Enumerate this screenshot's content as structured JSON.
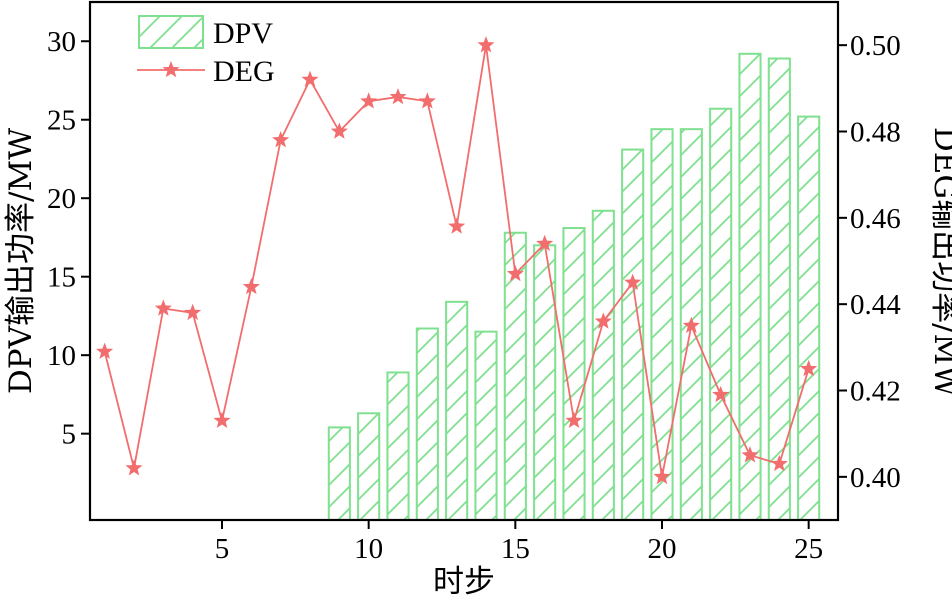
{
  "chart_data": {
    "type": "bar+line",
    "x_label": "时步",
    "y_left_label": "DPV输出功率/MW",
    "y_right_label": "DEG输出功率/MW",
    "x_range": [
      0.5,
      26
    ],
    "x_ticks": [
      5,
      10,
      15,
      20,
      25
    ],
    "y_left_range": [
      -0.5,
      32.5
    ],
    "y_left_ticks": [
      5,
      10,
      15,
      20,
      25,
      30
    ],
    "y_right_range": [
      0.39,
      0.51
    ],
    "y_right_ticks": [
      0.4,
      0.42,
      0.44,
      0.46,
      0.48,
      0.5
    ],
    "y_right_tick_labels": [
      "0.40",
      "0.42",
      "0.44",
      "0.46",
      "0.48",
      "0.50"
    ],
    "x": [
      1,
      2,
      3,
      4,
      5,
      6,
      7,
      8,
      9,
      10,
      11,
      12,
      13,
      14,
      15,
      16,
      17,
      18,
      19,
      20,
      21,
      22,
      23,
      24,
      25
    ],
    "series": [
      {
        "name": "DPV",
        "type": "bar",
        "axis": "left",
        "color": "#7fe08f",
        "pattern": "diagonal-hatch",
        "values": [
          0,
          0,
          0,
          0,
          0,
          0,
          0,
          0,
          5.4,
          6.3,
          8.9,
          11.7,
          13.4,
          11.5,
          17.8,
          17.0,
          18.1,
          19.2,
          23.1,
          24.4,
          24.4,
          25.7,
          29.2,
          28.9,
          25.2
        ]
      },
      {
        "name": "DEG",
        "type": "line",
        "axis": "right",
        "color": "#f26d6d",
        "marker": "star",
        "values": [
          0.429,
          0.402,
          0.439,
          0.438,
          0.413,
          0.444,
          0.478,
          0.492,
          0.48,
          0.487,
          0.488,
          0.487,
          0.458,
          0.5,
          0.447,
          0.454,
          0.413,
          0.436,
          0.445,
          0.4,
          0.435,
          0.419,
          0.405,
          0.403,
          0.425
        ]
      }
    ],
    "legend_position": "top-left",
    "grid": false
  }
}
